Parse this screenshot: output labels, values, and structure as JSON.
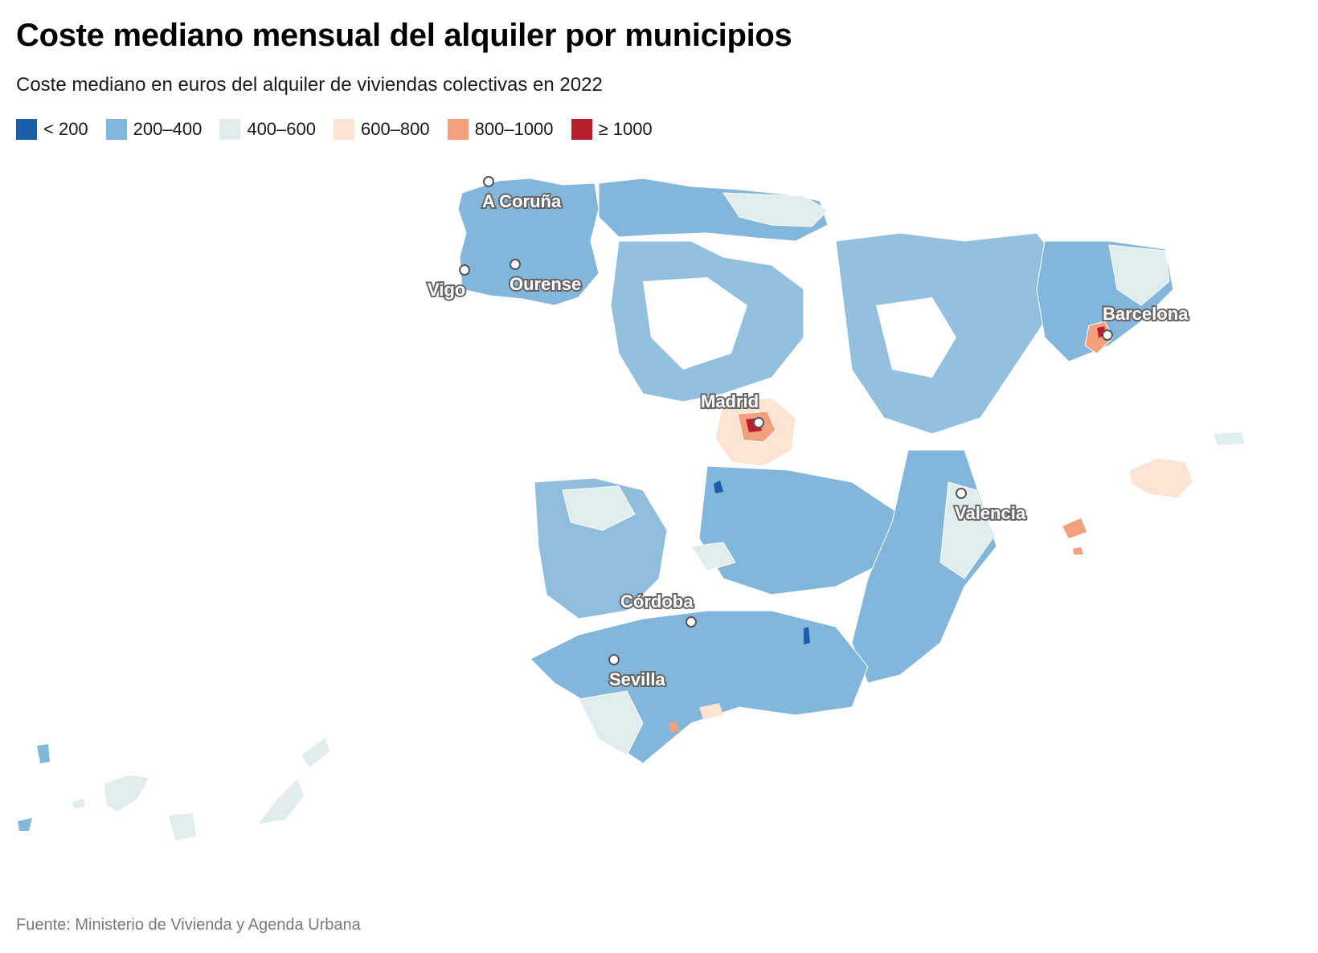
{
  "title": "Coste mediano mensual del alquiler por municipios",
  "subtitle": "Coste mediano en euros del alquiler de viviendas colectivas en 2022",
  "legend": [
    {
      "label": "< 200",
      "color": "#1a5fa8"
    },
    {
      "label": "200–400",
      "color": "#82b6da"
    },
    {
      "label": "400–600",
      "color": "#e1ecec"
    },
    {
      "label": "600–800",
      "color": "#fbe4d3"
    },
    {
      "label": "800–1000",
      "color": "#f3a07e"
    },
    {
      "label": "≥ 1000",
      "color": "#b81f2d"
    }
  ],
  "cities": [
    {
      "name": "A Coruña"
    },
    {
      "name": "Vigo"
    },
    {
      "name": "Ourense"
    },
    {
      "name": "Barcelona"
    },
    {
      "name": "Madrid"
    },
    {
      "name": "Valencia"
    },
    {
      "name": "Córdoba"
    },
    {
      "name": "Sevilla"
    }
  ],
  "source": "Fuente: Ministerio de Vivienda y Agenda Urbana"
}
